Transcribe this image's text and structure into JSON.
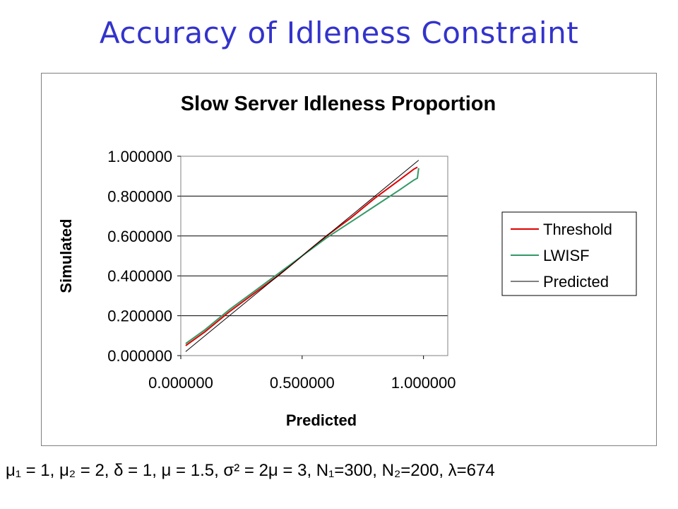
{
  "slide": {
    "title": "Accuracy of Idleness Constraint",
    "caption": "μ₁ = 1, μ₂ = 2, δ = 1, μ = 1.5, σ² = 2μ = 3, N₁=300, N₂=200, λ=674"
  },
  "colors": {
    "title": "#3333cc",
    "threshold": "#e00000",
    "lwisf": "#339966",
    "predicted": "#000000"
  },
  "chart_data": {
    "type": "line",
    "title": "Slow Server Idleness Proportion",
    "xlabel": "Predicted",
    "ylabel": "Simulated",
    "xlim": [
      0,
      1.1
    ],
    "ylim": [
      0,
      1
    ],
    "xticks": [
      0,
      0.5,
      1
    ],
    "xtick_labels": [
      "0.000000",
      "0.500000",
      "1.000000"
    ],
    "yticks": [
      0,
      0.2,
      0.4,
      0.6,
      0.8,
      1
    ],
    "ytick_labels": [
      "0.000000",
      "0.200000",
      "0.400000",
      "0.600000",
      "0.800000",
      "1.000000"
    ],
    "grid": "horizontal",
    "legend_position": "right",
    "series": [
      {
        "name": "Threshold",
        "color": "#e00000",
        "x": [
          0.02,
          0.1,
          0.2,
          0.3,
          0.4,
          0.5,
          0.6,
          0.7,
          0.8,
          0.9,
          0.96,
          0.975
        ],
        "y": [
          0.05,
          0.12,
          0.22,
          0.31,
          0.4,
          0.5,
          0.6,
          0.69,
          0.79,
          0.88,
          0.935,
          0.945
        ]
      },
      {
        "name": "LWISF",
        "color": "#339966",
        "x": [
          0.02,
          0.1,
          0.2,
          0.3,
          0.4,
          0.5,
          0.6,
          0.7,
          0.8,
          0.9,
          0.96,
          0.975,
          0.98
        ],
        "y": [
          0.06,
          0.13,
          0.23,
          0.32,
          0.41,
          0.5,
          0.59,
          0.67,
          0.75,
          0.83,
          0.88,
          0.89,
          0.94
        ]
      },
      {
        "name": "Predicted",
        "color": "#000000",
        "x": [
          0.02,
          0.98
        ],
        "y": [
          0.02,
          0.98
        ]
      }
    ]
  }
}
